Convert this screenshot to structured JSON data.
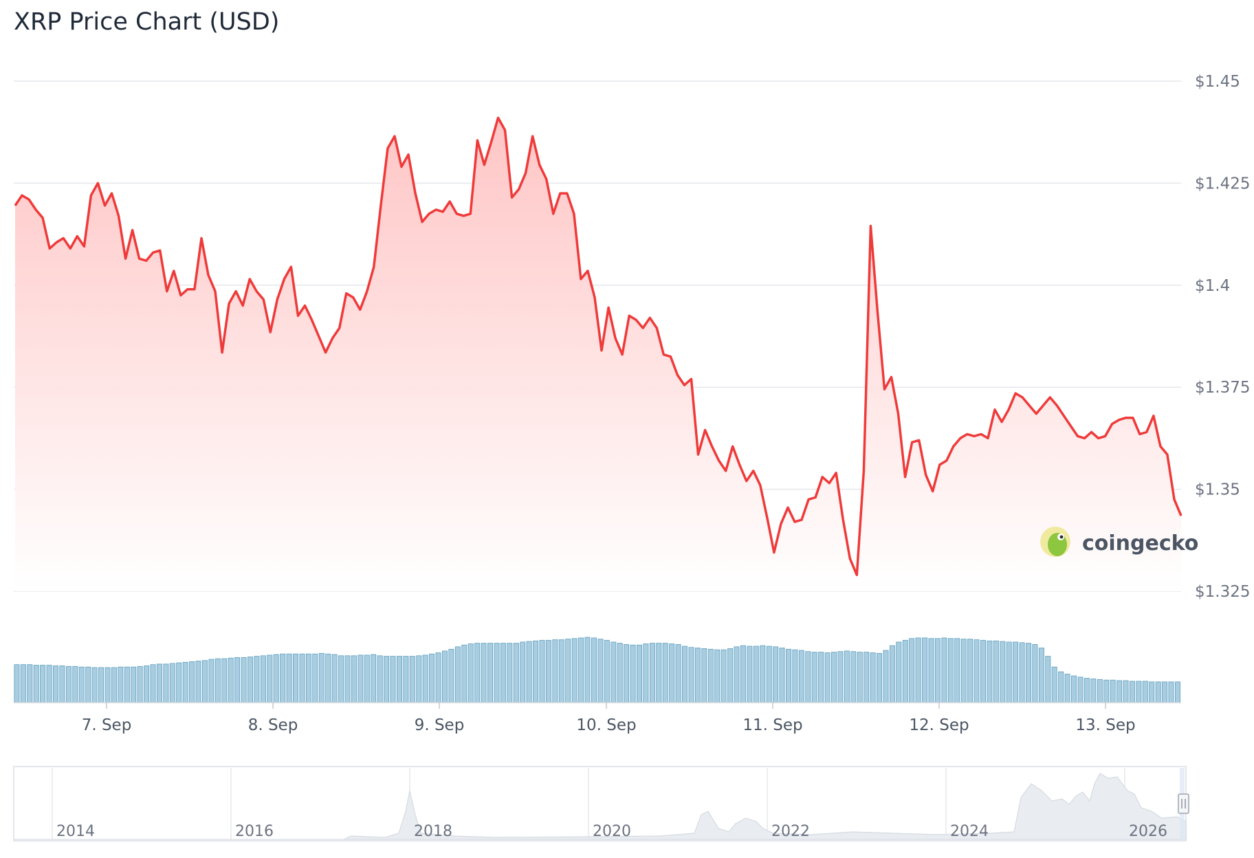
{
  "title": "XRP Price Chart (USD)",
  "watermark": "coingecko",
  "colors": {
    "price_line": "#ef3a3a",
    "price_fill": "#ffc7c7",
    "volume_bar": "#a9cde0",
    "volume_stroke": "#5e9fc0",
    "navigator_area": "#e9edf1",
    "grid": "#e5e7eb"
  },
  "chart_data": [
    {
      "type": "line",
      "series": [
        {
          "values": [
            1.4195,
            1.422,
            1.421,
            1.4185,
            1.4165,
            1.409,
            1.4105,
            1.4115,
            1.409,
            1.412,
            1.4095,
            1.422,
            1.425,
            1.4195,
            1.4225,
            1.417,
            1.4065,
            1.4135,
            1.4065,
            1.406,
            1.408,
            1.4085,
            1.3985,
            1.4035,
            1.3975,
            1.399,
            1.399,
            1.4115,
            1.4025,
            1.3985,
            1.3835,
            1.3955,
            1.3985,
            1.395,
            1.4015,
            1.3985,
            1.3965,
            1.3885,
            1.3965,
            1.4015,
            1.4045,
            1.3925,
            1.395,
            1.3915,
            1.3875,
            1.3835,
            1.387,
            1.3895,
            1.398,
            1.397,
            1.394,
            1.3985,
            1.4045,
            1.4195,
            1.4335,
            1.4365,
            1.429,
            1.432,
            1.4225,
            1.4155,
            1.4175,
            1.4185,
            1.418,
            1.4205,
            1.4175,
            1.417,
            1.4175,
            1.4355,
            1.4295,
            1.435,
            1.441,
            1.438,
            1.4215,
            1.4235,
            1.4275,
            1.4365,
            1.4295,
            1.426,
            1.4175,
            1.4225,
            1.4225,
            1.4175,
            1.4015,
            1.4035,
            1.397,
            1.384,
            1.3945,
            1.387,
            1.383,
            1.3925,
            1.3915,
            1.3895,
            1.392,
            1.3895,
            1.383,
            1.3825,
            1.378,
            1.3755,
            1.377,
            1.3585,
            1.3645,
            1.3605,
            1.357,
            1.3545,
            1.3605,
            1.356,
            1.352,
            1.3545,
            1.351,
            1.343,
            1.3345,
            1.3415,
            1.3455,
            1.342,
            1.3425,
            1.3475,
            1.348,
            1.353,
            1.3515,
            1.354,
            1.3425,
            1.333,
            1.329,
            1.3545,
            1.4145,
            1.3935,
            1.3745,
            1.3775,
            1.3685,
            1.353,
            1.3615,
            1.362,
            1.3535,
            1.3495,
            1.356,
            1.357,
            1.3605,
            1.3625,
            1.3635,
            1.363,
            1.3635,
            1.3625,
            1.3695,
            1.3665,
            1.3695,
            1.3735,
            1.3725,
            1.3705,
            1.3685,
            1.3705,
            1.3725,
            1.3705,
            1.368,
            1.3655,
            1.363,
            1.3625,
            1.364,
            1.3625,
            1.363,
            1.366,
            1.367,
            1.3675,
            1.3675,
            1.3635,
            1.364,
            1.368,
            1.3605,
            1.3585,
            1.3475,
            1.3435
          ]
        }
      ],
      "xticks": [
        "7. Sep",
        "8. Sep",
        "9. Sep",
        "10. Sep",
        "11. Sep",
        "12. Sep",
        "13. Sep"
      ],
      "yticks": [
        "$1.45",
        "$1.425",
        "$1.4",
        "$1.375",
        "$1.35",
        "$1.325"
      ],
      "ylim": [
        1.325,
        1.45
      ],
      "grid": true
    },
    {
      "type": "bar",
      "series": [
        {
          "values": [
            0.64,
            0.64,
            0.64,
            0.63,
            0.63,
            0.63,
            0.62,
            0.62,
            0.61,
            0.61,
            0.6,
            0.6,
            0.59,
            0.59,
            0.59,
            0.59,
            0.6,
            0.6,
            0.6,
            0.61,
            0.62,
            0.64,
            0.65,
            0.65,
            0.66,
            0.67,
            0.68,
            0.69,
            0.7,
            0.71,
            0.73,
            0.74,
            0.74,
            0.75,
            0.76,
            0.76,
            0.77,
            0.78,
            0.79,
            0.8,
            0.81,
            0.82,
            0.82,
            0.82,
            0.82,
            0.82,
            0.82,
            0.83,
            0.82,
            0.81,
            0.79,
            0.79,
            0.79,
            0.8,
            0.8,
            0.81,
            0.79,
            0.78,
            0.78,
            0.78,
            0.78,
            0.78,
            0.79,
            0.8,
            0.82,
            0.84,
            0.87,
            0.9,
            0.94,
            0.97,
            0.99,
            1.0,
            1.0,
            1.0,
            1.0,
            1.0,
            1.0,
            1.0,
            1.02,
            1.03,
            1.04,
            1.05,
            1.05,
            1.06,
            1.06,
            1.07,
            1.08,
            1.09,
            1.1,
            1.09,
            1.07,
            1.05,
            1.02,
            1.0,
            0.98,
            0.97,
            0.97,
            0.99,
            1.0,
            1.0,
            1.0,
            0.99,
            0.98,
            0.95,
            0.93,
            0.92,
            0.91,
            0.9,
            0.89,
            0.89,
            0.91,
            0.94,
            0.96,
            0.95,
            0.95,
            0.96,
            0.95,
            0.94,
            0.92,
            0.9,
            0.89,
            0.88,
            0.86,
            0.85,
            0.85,
            0.84,
            0.85,
            0.86,
            0.87,
            0.86,
            0.85,
            0.85,
            0.84,
            0.83,
            0.88,
            0.96,
            1.02,
            1.05,
            1.08,
            1.09,
            1.09,
            1.08,
            1.08,
            1.09,
            1.08,
            1.08,
            1.07,
            1.07,
            1.06,
            1.05,
            1.04,
            1.04,
            1.03,
            1.02,
            1.02,
            1.01,
            1.0,
            0.98,
            0.92,
            0.78,
            0.6,
            0.52,
            0.48,
            0.45,
            0.43,
            0.41,
            0.4,
            0.39,
            0.38,
            0.38,
            0.37,
            0.37,
            0.36,
            0.36,
            0.36,
            0.35,
            0.35,
            0.35,
            0.35,
            0.35
          ]
        }
      ]
    },
    {
      "type": "area",
      "xticks": [
        "2014",
        "2016",
        "2018",
        "2020",
        "2022",
        "2024",
        "2026"
      ]
    }
  ]
}
